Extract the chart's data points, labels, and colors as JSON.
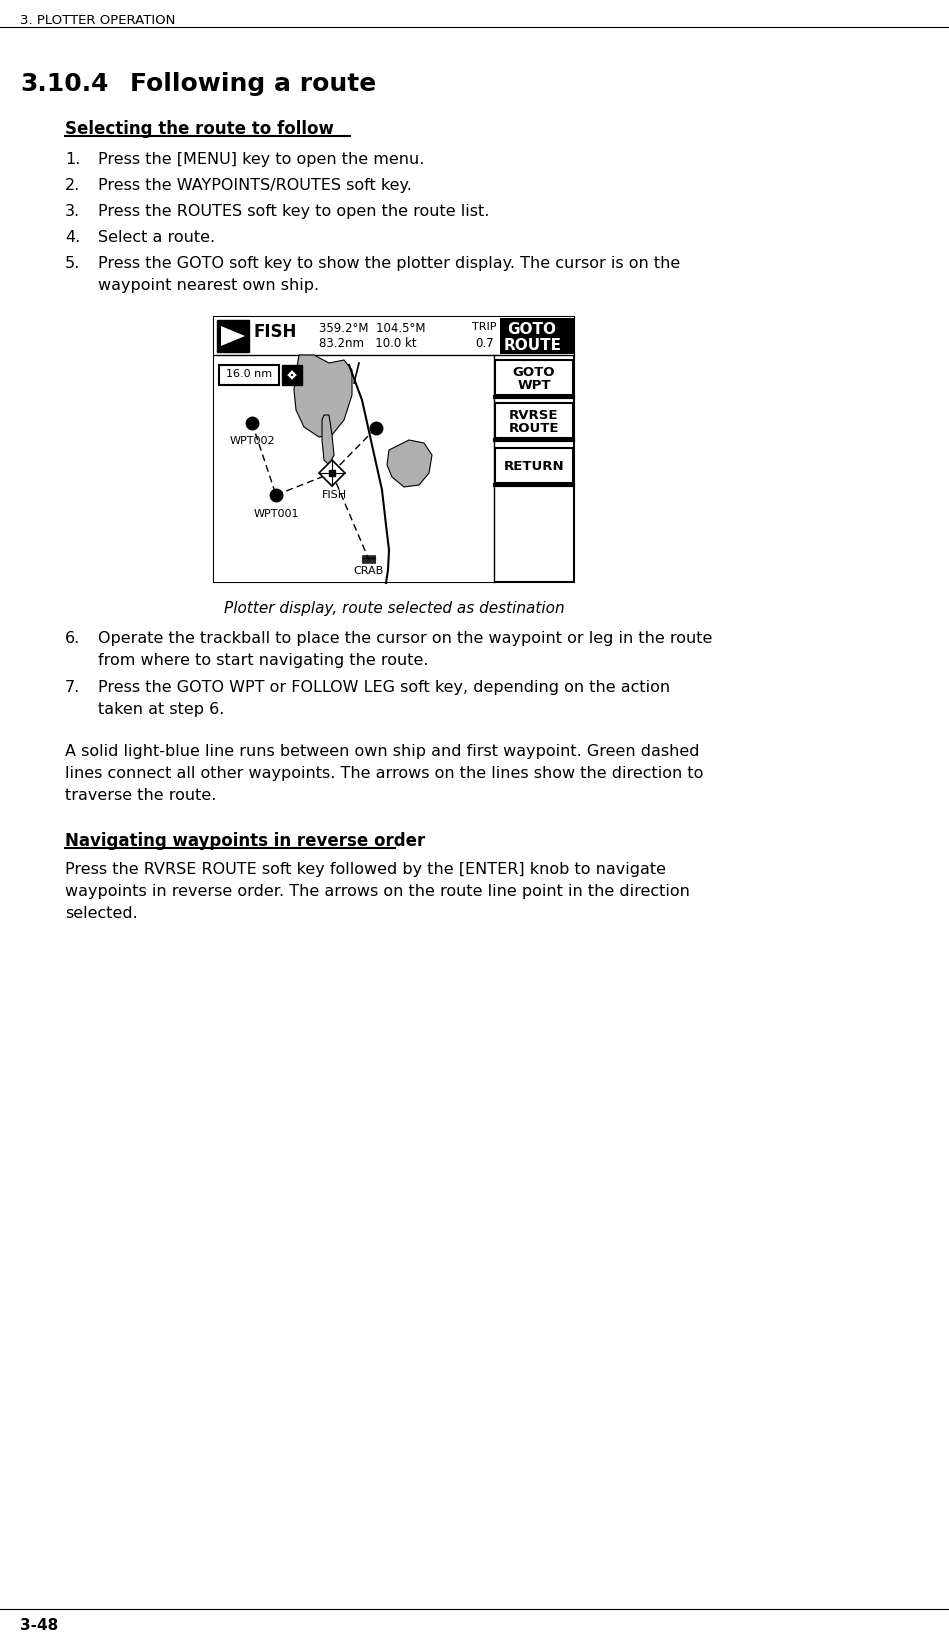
{
  "page_header": "3. PLOTTER OPERATION",
  "section_number": "3.10.4",
  "section_title": "Following a route",
  "subsection1_title": "Selecting the route to follow",
  "step1": "Press the [MENU] key to open the menu.",
  "step2": "Press the WAYPOINTS/ROUTES soft key.",
  "step3": "Press the ROUTES soft key to open the route list.",
  "step4": "Select a route.",
  "step5a": "Press the GOTO soft key to show the plotter display. The cursor is on the",
  "step5b": "waypoint nearest own ship.",
  "figure_caption": "Plotter display, route selected as destination",
  "step6a": "Operate the trackball to place the cursor on the waypoint or leg in the route",
  "step6b": "from where to start navigating the route.",
  "step7a": "Press the GOTO WPT or FOLLOW LEG soft key, depending on the action",
  "step7b": "taken at step 6.",
  "para1a": "A solid light-blue line runs between own ship and first waypoint. Green dashed",
  "para1b": "lines connect all other waypoints. The arrows on the lines show the direction to",
  "para1c": "traverse the route.",
  "subsection2_title": "Navigating waypoints in reverse order",
  "para2a": "Press the RVRSE ROUTE soft key followed by the [ENTER] knob to navigate",
  "para2b": "waypoints in reverse order. The arrows on the route line point in the direction",
  "para2c": "selected.",
  "page_footer": "3-48",
  "bg_color": "#ffffff",
  "text_color": "#000000"
}
